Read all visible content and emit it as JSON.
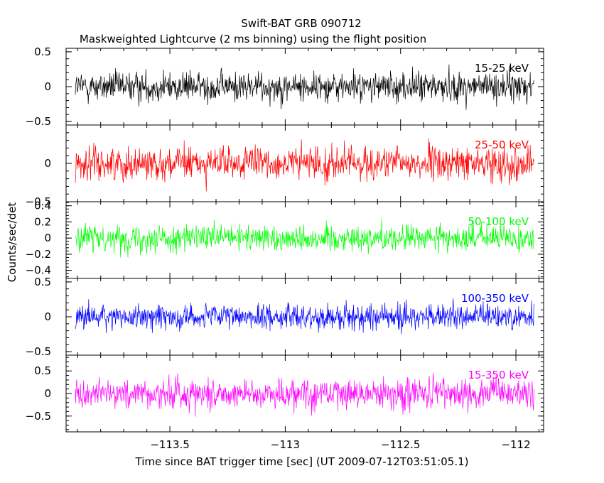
{
  "chart_data": {
    "type": "line",
    "title": "Swift-BAT GRB 090712",
    "subtitle": "Maskweighted Lightcurve (2 ms binning) using the flight position",
    "xlabel": "Time since BAT trigger time [sec] (UT 2009-07-12T03:51:05.1)",
    "ylabel": "Counts/sec/det",
    "xlim": [
      -113.95,
      -111.88
    ],
    "x_ticks": [
      -113.5,
      -113,
      -112.5,
      -112
    ],
    "x_tick_labels": [
      "−113.5",
      "−113",
      "−112.5",
      "−112"
    ],
    "x_range_data": [
      -113.91,
      -111.92
    ],
    "bin_width": 0.002,
    "panels": [
      {
        "name": "15-25 keV",
        "color": "#000000",
        "ylim": [
          -0.55,
          0.55
        ],
        "yticks": [
          -0.5,
          0,
          0.5
        ],
        "ytick_labels": [
          "−0.5",
          "0",
          "0.5"
        ],
        "typical_amplitude": 0.17
      },
      {
        "name": "25-50 keV",
        "color": "#ff0000",
        "ylim": [
          -0.5,
          0.5
        ],
        "yticks": [
          -0.5,
          0
        ],
        "ytick_labels": [
          "−0.5",
          "0"
        ],
        "typical_amplitude": 0.17
      },
      {
        "name": "50-100 keV",
        "color": "#00ff00",
        "ylim": [
          -0.5,
          0.45
        ],
        "yticks": [
          -0.4,
          -0.2,
          0,
          0.2,
          0.4
        ],
        "ytick_labels": [
          "−0.4",
          "−0.2",
          "0",
          "0.2",
          "0.4"
        ],
        "typical_amplitude": 0.13
      },
      {
        "name": "100-350 keV",
        "color": "#0000ff",
        "ylim": [
          -0.55,
          0.55
        ],
        "yticks": [
          -0.5,
          0,
          0.5
        ],
        "ytick_labels": [
          "−0.5",
          "0",
          "0.5"
        ],
        "typical_amplitude": 0.14
      },
      {
        "name": "15-350 keV",
        "color": "#ff00ff",
        "ylim": [
          -0.85,
          0.85
        ],
        "yticks": [
          -0.5,
          0,
          0.5
        ],
        "ytick_labels": [
          "−0.5",
          "0",
          "0.5"
        ],
        "typical_amplitude": 0.27
      }
    ]
  }
}
